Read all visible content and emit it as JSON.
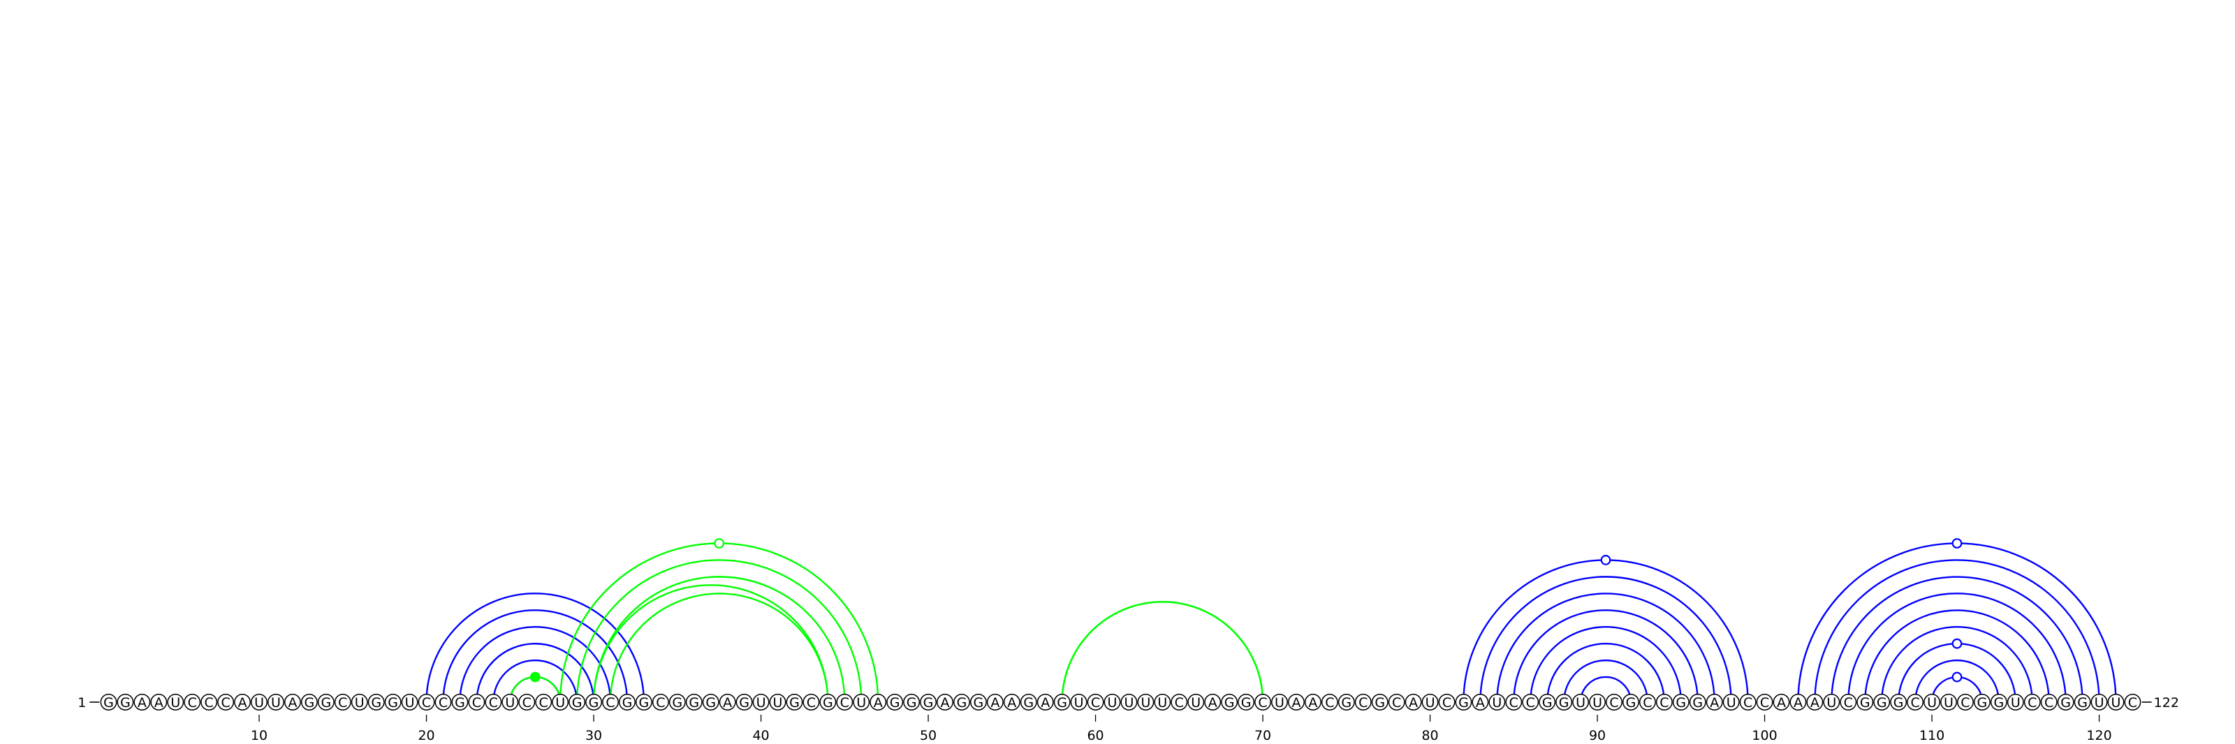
{
  "sequence": "GGAAUCCCAUUAGGCUGGUCCGCCUCCUGGCGGCGGGAGUUGCGCUAGGGAGGAAGAGUCUUUUCUAGGCUAACGCGCAUCGAUCCGGUUCGCCGGAUCCAAAUCGGGCUUCGGUCCGGUUC",
  "start_label": "1",
  "end_label": "122",
  "tick_labels": [
    "10",
    "20",
    "30",
    "40",
    "50",
    "60",
    "70",
    "80",
    "90",
    "100",
    "110",
    "120"
  ],
  "colors": {
    "blue": "#0000ff",
    "green": "#00ff00",
    "text": "#000000",
    "nucleotide_fill": "#ffffff"
  },
  "arc_groups": [
    {
      "name": "blue-helix-1",
      "color": "blue",
      "pairs": [
        [
          20,
          33
        ],
        [
          21,
          32
        ],
        [
          22,
          31
        ],
        [
          23,
          30
        ],
        [
          24,
          29
        ],
        [
          25,
          28
        ]
      ]
    },
    {
      "name": "green-arc-1",
      "color": "green",
      "pairs": [
        [
          25,
          28
        ]
      ],
      "marker": {
        "fill": "filled"
      }
    },
    {
      "name": "green-helix-2",
      "color": "green",
      "pairs": [
        [
          28,
          47
        ],
        [
          29,
          46
        ],
        [
          30,
          45
        ],
        [
          30,
          44
        ],
        [
          31,
          44
        ]
      ],
      "marker": {
        "fill": "open"
      }
    },
    {
      "name": "green-arc-3",
      "color": "green",
      "pairs": [
        [
          58,
          70
        ],
        [
          58,
          70
        ]
      ]
    },
    {
      "name": "blue-helix-4",
      "color": "blue",
      "pairs": [
        [
          82,
          99
        ],
        [
          83,
          98
        ],
        [
          84,
          97
        ],
        [
          85,
          96
        ],
        [
          86,
          95
        ],
        [
          87,
          94
        ],
        [
          88,
          93
        ],
        [
          89,
          92
        ]
      ],
      "marker": {
        "fill": "open"
      }
    },
    {
      "name": "blue-helix-5",
      "color": "blue",
      "pairs": [
        [
          102,
          121
        ],
        [
          103,
          120
        ],
        [
          104,
          119
        ],
        [
          105,
          118
        ],
        [
          106,
          117
        ],
        [
          107,
          116
        ],
        [
          108,
          115
        ],
        [
          109,
          114
        ],
        [
          110,
          113
        ]
      ],
      "marker": {
        "fill": "open"
      }
    }
  ]
}
